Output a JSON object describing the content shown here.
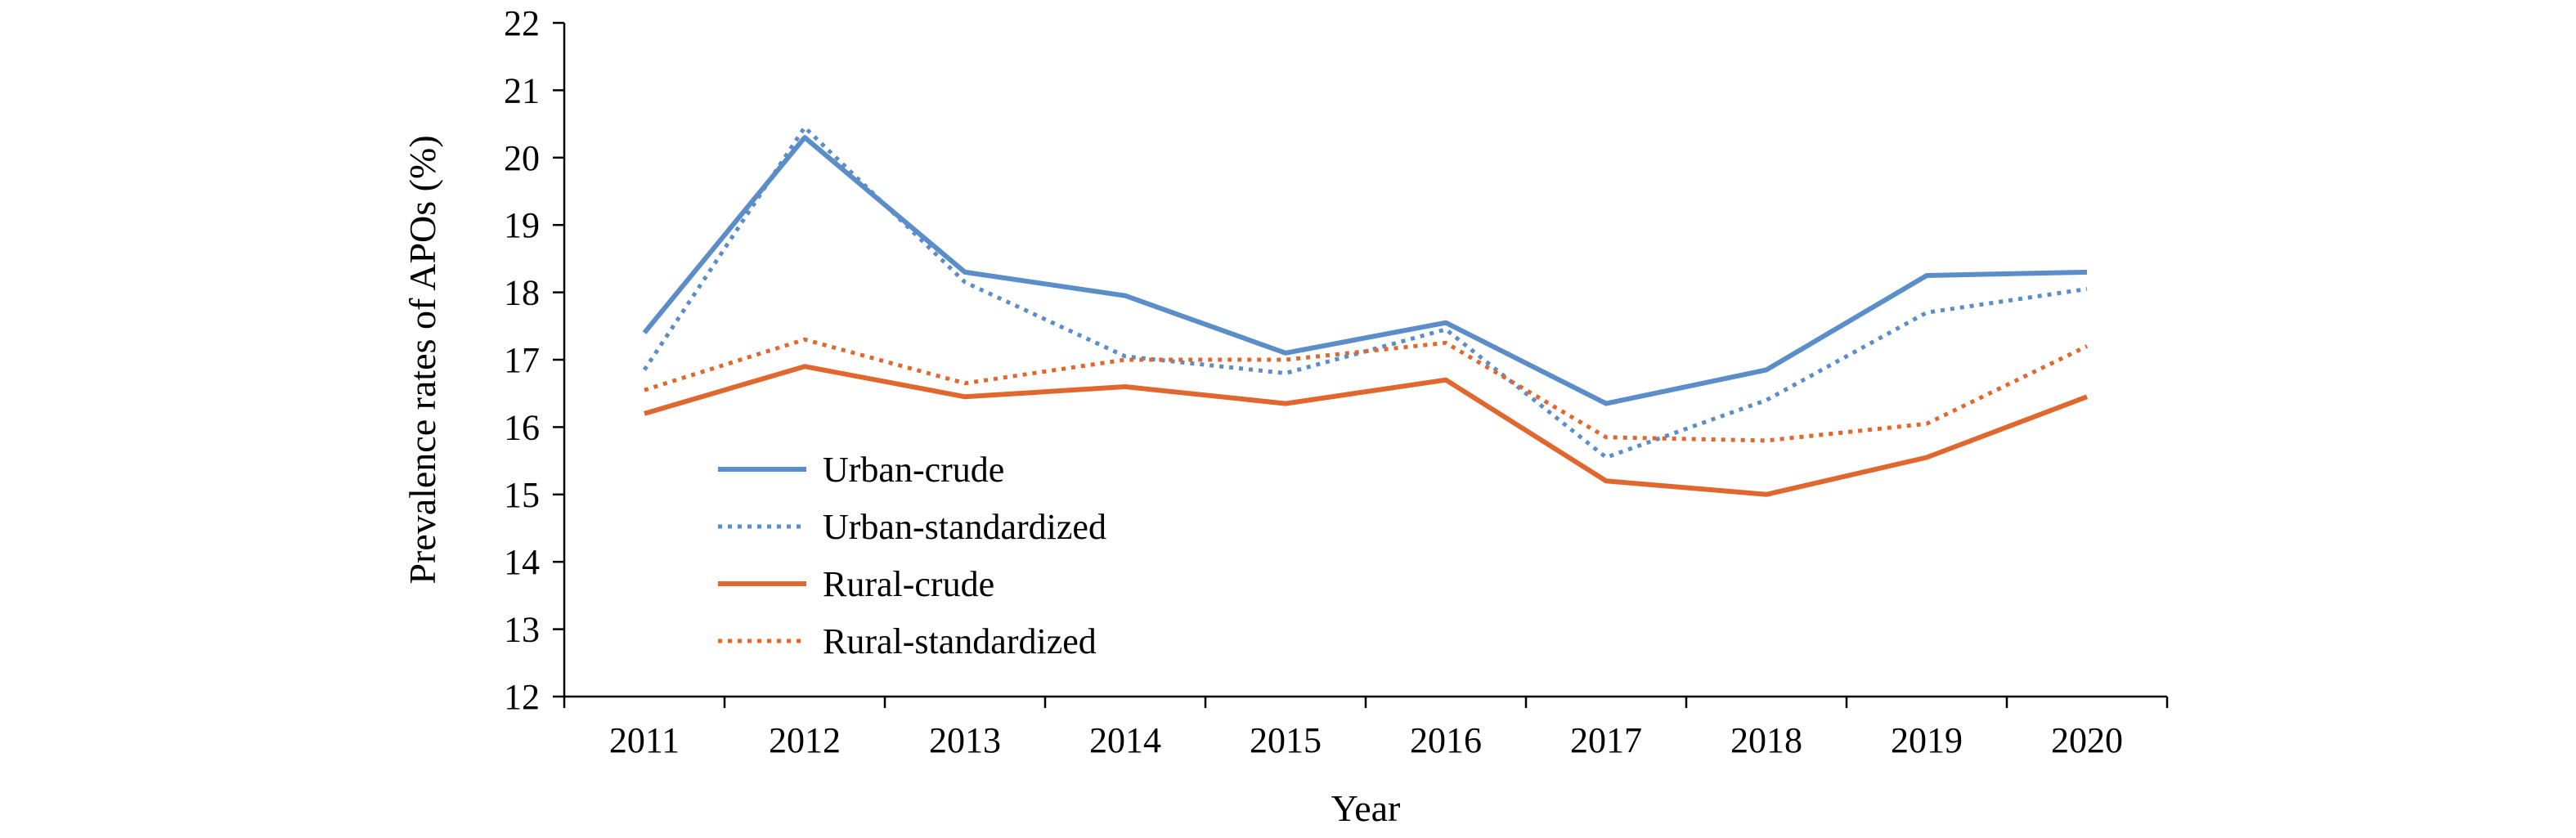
{
  "chart_data": {
    "type": "line",
    "xlabel": "Year",
    "ylabel": "Prevalence rates of APOs (%)",
    "categories": [
      "2011",
      "2012",
      "2013",
      "2014",
      "2015",
      "2016",
      "2017",
      "2018",
      "2019",
      "2020"
    ],
    "ylim": [
      12,
      22
    ],
    "yticks": [
      12,
      13,
      14,
      15,
      16,
      17,
      18,
      19,
      20,
      21,
      22
    ],
    "grid": false,
    "legend_position": "inside-left",
    "series": [
      {
        "name": "Urban-crude",
        "color": "#5b8dc9",
        "style": "solid",
        "values": [
          17.4,
          20.3,
          18.3,
          17.95,
          17.1,
          17.55,
          16.35,
          16.85,
          18.25,
          18.3
        ]
      },
      {
        "name": "Urban-standardized",
        "color": "#5b8dc9",
        "style": "dotted",
        "values": [
          16.85,
          20.45,
          18.15,
          17.05,
          16.8,
          17.45,
          15.55,
          16.4,
          17.7,
          18.05
        ]
      },
      {
        "name": "Rural-crude",
        "color": "#e0682f",
        "style": "solid",
        "values": [
          16.2,
          16.9,
          16.45,
          16.6,
          16.35,
          16.7,
          15.2,
          15.0,
          15.55,
          16.45
        ]
      },
      {
        "name": "Rural-standardized",
        "color": "#e0682f",
        "style": "dotted",
        "values": [
          16.55,
          17.3,
          16.65,
          17.0,
          17.0,
          17.25,
          15.85,
          15.8,
          16.05,
          17.2
        ]
      }
    ]
  }
}
